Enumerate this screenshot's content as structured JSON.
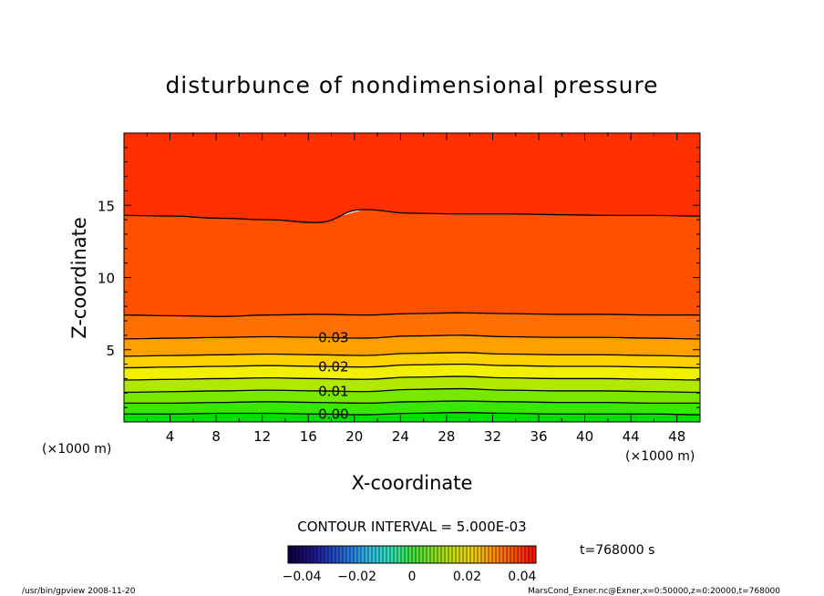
{
  "chart_data": {
    "type": "contour",
    "title": "disturbunce of nondimensional pressure",
    "xlabel": "X-coordinate",
    "ylabel": "Z-coordinate",
    "x_unit": "(×1000 m)",
    "z_unit": "(×1000 m)",
    "xlim": [
      0,
      50
    ],
    "ylim": [
      0,
      20
    ],
    "x_ticks": [
      "4",
      "8",
      "12",
      "16",
      "20",
      "24",
      "28",
      "32",
      "36",
      "40",
      "44",
      "48"
    ],
    "y_ticks": [
      "5",
      "10",
      "15"
    ],
    "contour_interval_text": "CONTOUR INTERVAL = 5.000E-03",
    "contour_labels": [
      "0.00",
      "0.01",
      "0.02",
      "0.03"
    ],
    "contour_levels": [
      0.0,
      0.005,
      0.01,
      0.015,
      0.02,
      0.025,
      0.03,
      0.035,
      0.04
    ],
    "contour_lines": [
      {
        "level": 0.0,
        "label": "0.00",
        "z": [
          0.55,
          0.55,
          0.6,
          0.6,
          0.55,
          0.5,
          0.6,
          0.65,
          0.6,
          0.55,
          0.55,
          0.55,
          0.5
        ]
      },
      {
        "level": 0.005,
        "label": "",
        "z": [
          1.3,
          1.3,
          1.35,
          1.4,
          1.35,
          1.3,
          1.4,
          1.45,
          1.4,
          1.35,
          1.35,
          1.3,
          1.3
        ]
      },
      {
        "level": 0.01,
        "label": "0.01",
        "z": [
          2.05,
          2.1,
          2.15,
          2.2,
          2.15,
          2.1,
          2.25,
          2.3,
          2.2,
          2.15,
          2.15,
          2.1,
          2.05
        ]
      },
      {
        "level": 0.015,
        "label": "",
        "z": [
          2.9,
          2.95,
          3.0,
          3.05,
          3.0,
          2.95,
          3.1,
          3.15,
          3.05,
          3.0,
          3.0,
          2.95,
          2.9
        ]
      },
      {
        "level": 0.02,
        "label": "0.02",
        "z": [
          3.75,
          3.8,
          3.85,
          3.9,
          3.85,
          3.8,
          3.95,
          4.0,
          3.9,
          3.85,
          3.85,
          3.8,
          3.75
        ]
      },
      {
        "level": 0.025,
        "label": "",
        "z": [
          4.55,
          4.6,
          4.65,
          4.7,
          4.65,
          4.6,
          4.75,
          4.8,
          4.7,
          4.65,
          4.65,
          4.6,
          4.55
        ]
      },
      {
        "level": 0.03,
        "label": "0.03",
        "z": [
          5.75,
          5.8,
          5.85,
          5.9,
          5.85,
          5.8,
          5.95,
          6.0,
          5.9,
          5.85,
          5.85,
          5.8,
          5.75
        ]
      },
      {
        "level": 0.035,
        "label": "",
        "z": [
          7.4,
          7.35,
          7.3,
          7.4,
          7.45,
          7.4,
          7.5,
          7.55,
          7.5,
          7.45,
          7.45,
          7.4,
          7.4
        ]
      },
      {
        "level": 0.035,
        "label": "",
        "z": [
          14.3,
          14.25,
          14.1,
          14.0,
          13.8,
          14.7,
          14.45,
          14.4,
          14.4,
          14.35,
          14.3,
          14.3,
          14.25
        ]
      }
    ],
    "colorbar": {
      "tick_labels": [
        "−0.04",
        "−0.02",
        "0",
        "0.02",
        "0.04"
      ],
      "tick_values": [
        -0.04,
        -0.02,
        0,
        0.02,
        0.04
      ],
      "range": [
        -0.045,
        0.045
      ],
      "colors": [
        "#0a0040",
        "#201080",
        "#2040c0",
        "#2a7ee0",
        "#30c0e8",
        "#30e0b0",
        "#40e040",
        "#80e020",
        "#c8e000",
        "#f0d000",
        "#ff9000",
        "#ff5000",
        "#ff1000"
      ]
    },
    "time_label": "t=768000 s",
    "footer_left": "/usr/bin/gpview   2008-11-20",
    "footer_right": "MarsCond_Exner.nc@Exner,x=0:50000,z=0:20000,t=768000",
    "band_colors": [
      "#00e000",
      "#38e800",
      "#78e800",
      "#b0e800",
      "#f0f000",
      "#ffd000",
      "#ffa000",
      "#ff7000",
      "#ff5000",
      "#ff3000",
      "#ff2000",
      "#ff5000",
      "#ff6a00"
    ]
  }
}
